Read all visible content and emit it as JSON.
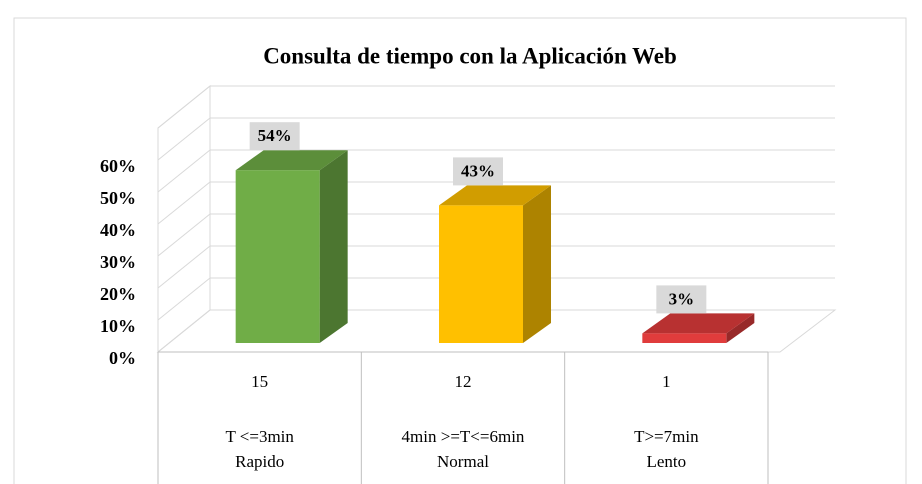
{
  "chart_data": {
    "type": "bar3d",
    "title": "Consulta de tiempo con la Aplicación Web",
    "categories": [
      [
        "T <=3min",
        "Rapido"
      ],
      [
        "4min >=T<=6min",
        "Normal"
      ],
      [
        "T>=7min",
        "Lento"
      ]
    ],
    "counts": [
      15,
      12,
      1
    ],
    "values": [
      54,
      43,
      3
    ],
    "value_labels": [
      "54%",
      "43%",
      "3%"
    ],
    "colors": [
      "#70ad47",
      "#ffc000",
      "#e03c3c"
    ],
    "ylim": [
      0,
      70
    ],
    "yticks": [
      {
        "value": 0,
        "label": "0%"
      },
      {
        "value": 10,
        "label": "10%"
      },
      {
        "value": 20,
        "label": "20%"
      },
      {
        "value": 30,
        "label": "30%"
      },
      {
        "value": 40,
        "label": "40%"
      },
      {
        "value": 50,
        "label": "50%"
      },
      {
        "value": 60,
        "label": "60%"
      }
    ],
    "grid": true
  }
}
